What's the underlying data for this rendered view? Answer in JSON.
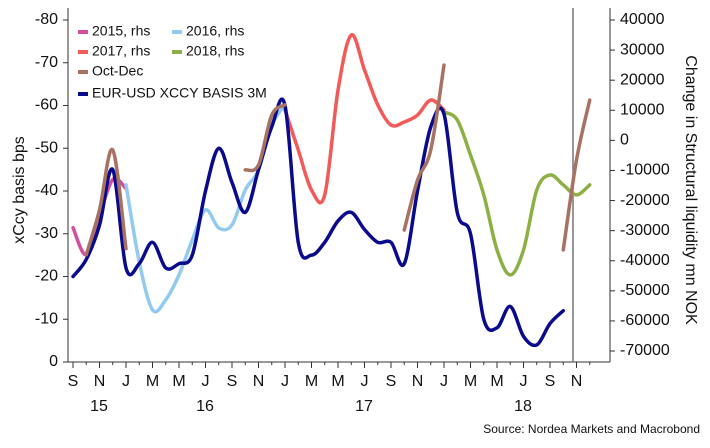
{
  "chart_data": {
    "type": "line",
    "y_label": "xCcy basis bps",
    "y2_label": "Change in Structural liquidity mn NOK",
    "source": "Source: Nordea Markets and Macrobond",
    "categories": [
      "S",
      null,
      "N",
      null,
      "J",
      null,
      "M",
      null,
      "M",
      null,
      "J",
      null,
      "S",
      null,
      "N",
      null,
      "J",
      null,
      "M",
      null,
      "M",
      null,
      "J",
      null,
      "S",
      null,
      "N",
      null,
      "J",
      null,
      "M",
      null,
      "M",
      null,
      "J",
      null,
      "S",
      null,
      "N",
      null
    ],
    "year_labels": [
      "15",
      "16",
      "17",
      "18"
    ],
    "ylim": [
      0,
      -80
    ],
    "yticks": [
      -80,
      -70,
      -60,
      -50,
      -40,
      -30,
      -20,
      -10,
      0
    ],
    "y2lim": [
      -73650,
      40000
    ],
    "y2ticks": [
      40000,
      30000,
      20000,
      10000,
      0,
      -10000,
      -20000,
      -30000,
      -40000,
      -50000,
      -60000,
      -70000
    ],
    "series": [
      {
        "name": "2015, rhs",
        "color": "#d44e9e",
        "axis": "y2",
        "values": [
          -29000,
          -38000,
          -25000,
          -13000,
          -16000,
          null,
          null,
          null,
          null,
          null,
          null,
          null,
          null,
          null,
          null,
          null,
          null,
          null,
          null,
          null,
          null,
          null,
          null,
          null,
          null,
          null,
          null,
          null,
          null,
          null,
          null,
          null,
          null,
          null,
          null,
          null,
          null,
          null,
          null,
          null
        ]
      },
      {
        "name": "2016, rhs",
        "color": "#92caf0",
        "axis": "y2",
        "values": [
          null,
          null,
          null,
          null,
          -14800,
          -40400,
          -56300,
          -53000,
          -44700,
          -33100,
          -23100,
          -29100,
          -28100,
          -16500,
          -9800,
          5100,
          11800,
          null,
          null,
          null,
          null,
          null,
          null,
          null,
          null,
          null,
          null,
          null,
          null,
          null,
          null,
          null,
          null,
          null,
          null,
          null,
          null,
          null,
          null,
          null
        ]
      },
      {
        "name": "2017, rhs",
        "color": "#f25a5a",
        "axis": "y2",
        "values": [
          null,
          null,
          null,
          null,
          null,
          null,
          null,
          null,
          null,
          null,
          null,
          null,
          null,
          null,
          null,
          null,
          10100,
          -3200,
          -16500,
          -18100,
          16700,
          35000,
          23400,
          11800,
          5100,
          6100,
          8400,
          13400,
          10100,
          null,
          null,
          null,
          null,
          null,
          null,
          null,
          null,
          null,
          null,
          null
        ]
      },
      {
        "name": "2018, rhs",
        "color": "#8cb043",
        "axis": "y2",
        "values": [
          null,
          null,
          null,
          null,
          null,
          null,
          null,
          null,
          null,
          null,
          null,
          null,
          null,
          null,
          null,
          null,
          null,
          null,
          null,
          null,
          null,
          null,
          null,
          null,
          null,
          null,
          null,
          null,
          9400,
          6800,
          -4900,
          -18100,
          -36400,
          -44700,
          -36400,
          -16500,
          -11500,
          -14800,
          -18100,
          -14800
        ]
      },
      {
        "name": "Oct-Dec",
        "color": "#a87262",
        "axis": "y2",
        "values": [
          null,
          -38000,
          -23100,
          -3200,
          -36000,
          null,
          null,
          null,
          null,
          null,
          null,
          null,
          null,
          -9800,
          -8200,
          8400,
          11800,
          null,
          null,
          null,
          null,
          null,
          null,
          null,
          null,
          -29800,
          -13200,
          -3200,
          25000,
          null,
          null,
          null,
          null,
          null,
          null,
          null,
          null,
          -36400,
          -6500,
          13400
        ]
      },
      {
        "name": "EUR-USD XCCY BASIS 3M",
        "color": "#0a0a8c",
        "values": [
          -20,
          -24,
          -32,
          -45,
          -22,
          -23,
          -28,
          -22,
          -23,
          -25,
          -40,
          -50,
          -42,
          -35,
          -45,
          -55,
          -60,
          -28,
          -25,
          -28,
          -33,
          -35,
          -31,
          -28,
          -28,
          -23,
          -40,
          -55,
          -58,
          -35,
          -30,
          -10,
          -8,
          -13,
          -6,
          -4,
          -9,
          -12,
          null,
          null
        ]
      }
    ]
  }
}
